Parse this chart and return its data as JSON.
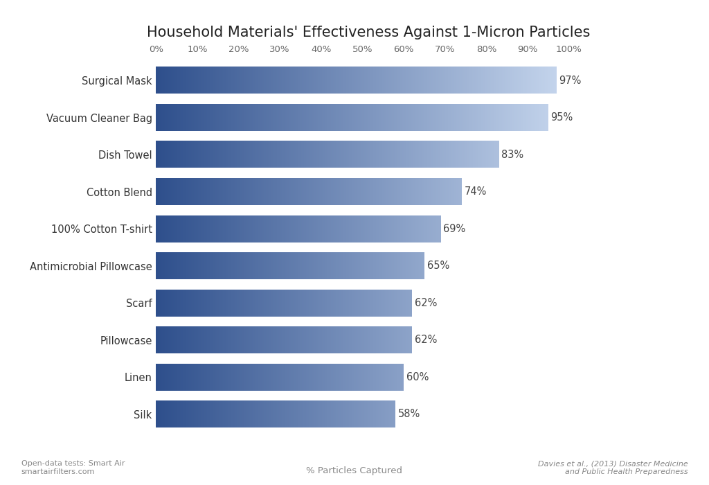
{
  "title": "Household Materials' Effectiveness Against 1-Micron Particles",
  "categories": [
    "Silk",
    "Linen",
    "Pillowcase",
    "Scarf",
    "Antimicrobial Pillowcase",
    "100% Cotton T-shirt",
    "Cotton Blend",
    "Dish Towel",
    "Vacuum Cleaner Bag",
    "Surgical Mask"
  ],
  "values": [
    58,
    60,
    62,
    62,
    65,
    69,
    74,
    83,
    95,
    97
  ],
  "xlim_max": 100,
  "xticks": [
    0,
    10,
    20,
    30,
    40,
    50,
    60,
    70,
    80,
    90,
    100
  ],
  "xtick_labels": [
    "0%",
    "10%",
    "20%",
    "30%",
    "40%",
    "50%",
    "60%",
    "70%",
    "80%",
    "90%",
    "100%"
  ],
  "bar_color_dark": "#2e4f8c",
  "bar_color_light": "#c8d8ef",
  "background_color": "#ffffff",
  "title_fontsize": 15,
  "label_fontsize": 10.5,
  "value_fontsize": 10.5,
  "tick_fontsize": 9.5,
  "bar_height": 0.72,
  "bar_spacing": 1.0,
  "footer_left": "Open-data tests: Smart Air\nsmartairfilters.com",
  "footer_center": "% Particles Captured",
  "footer_right": "Davies et al., (2013) Disaster Medicine\nand Public Health Preparedness"
}
